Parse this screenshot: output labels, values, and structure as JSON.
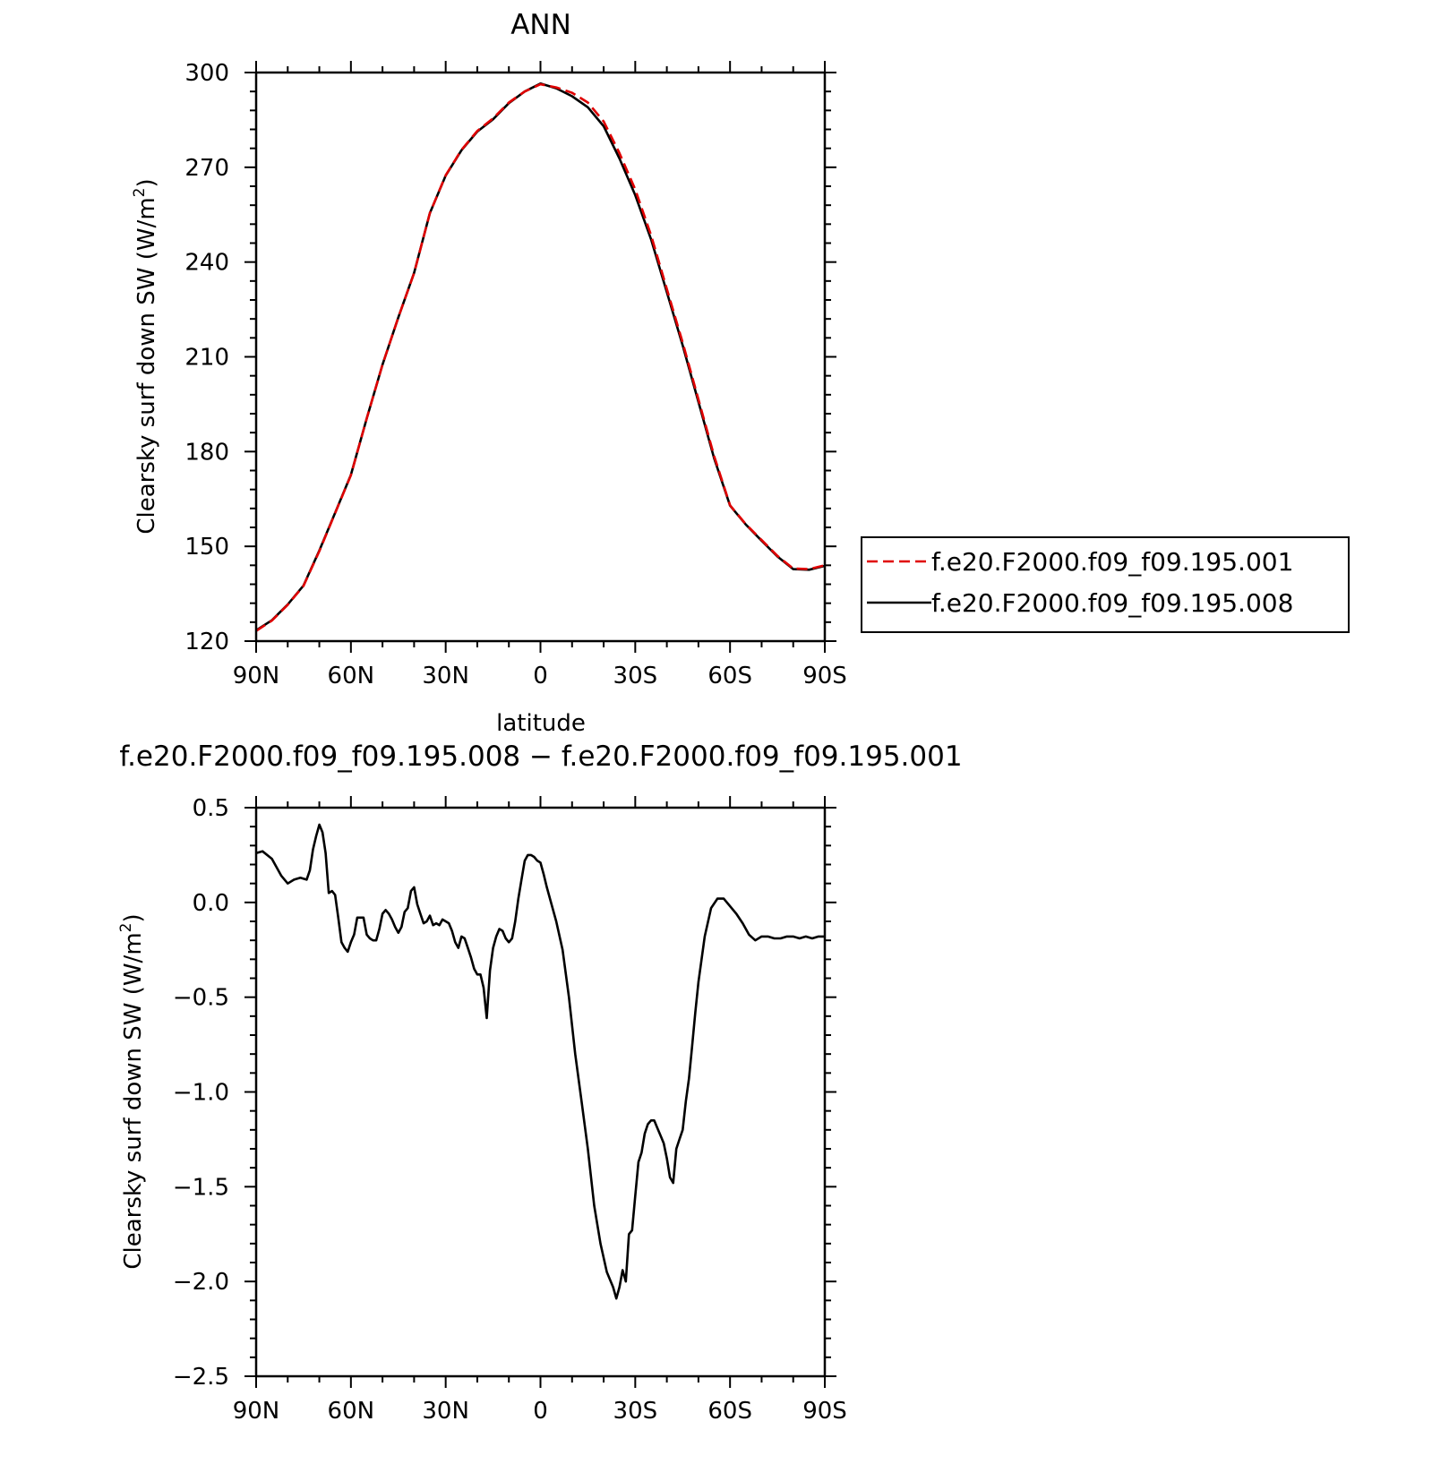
{
  "chart_data": [
    {
      "type": "line",
      "title": "ANN",
      "xlabel": "latitude",
      "ylabel": "Clearsky surf down SW (W/m",
      "ylabel_sup": "2",
      "ylabel_close": ")",
      "xlim": [
        90,
        -90
      ],
      "ylim": [
        120,
        300
      ],
      "x_ticks": [
        90,
        60,
        30,
        0,
        -30,
        -60,
        -90
      ],
      "x_tick_labels": [
        "90N",
        "60N",
        "30N",
        "0",
        "30S",
        "60S",
        "90S"
      ],
      "y_ticks": [
        120,
        150,
        180,
        210,
        240,
        270,
        300
      ],
      "y_tick_labels": [
        "120",
        "150",
        "180",
        "210",
        "240",
        "270",
        "300"
      ],
      "legend_position": "right",
      "series": [
        {
          "name": "f.e20.F2000.f09_f09.195.001",
          "color": "#e00000",
          "dash": "dashed",
          "x": [
            90,
            85,
            80,
            75,
            70,
            65,
            60,
            55,
            50,
            45,
            40,
            35,
            30,
            25,
            20,
            15,
            10,
            5,
            0,
            -5,
            -10,
            -15,
            -20,
            -25,
            -30,
            -35,
            -40,
            -45,
            -50,
            -55,
            -60,
            -65,
            -70,
            -75,
            -80,
            -85,
            -90
          ],
          "y": [
            123.2,
            126.5,
            131.5,
            137.5,
            148.5,
            160.5,
            172.5,
            190.5,
            207.5,
            222.5,
            236.5,
            255.5,
            267.5,
            275.5,
            281.5,
            285.5,
            290.5,
            294.0,
            296.3,
            295.3,
            293.6,
            290.5,
            284.5,
            274.5,
            263.0,
            248.5,
            231.5,
            214.5,
            196.5,
            178.5,
            163.0,
            157.0,
            152.0,
            147.0,
            143.0,
            142.8,
            144.0
          ]
        },
        {
          "name": "f.e20.F2000.f09_f09.195.008",
          "color": "#000000",
          "dash": "solid",
          "x": [
            90,
            85,
            80,
            75,
            70,
            65,
            60,
            55,
            50,
            45,
            40,
            35,
            30,
            25,
            20,
            15,
            10,
            5,
            0,
            -5,
            -10,
            -15,
            -20,
            -25,
            -30,
            -35,
            -40,
            -45,
            -50,
            -55,
            -60,
            -65,
            -70,
            -75,
            -80,
            -85,
            -90
          ],
          "y": [
            123.4,
            126.6,
            131.6,
            137.6,
            148.7,
            160.6,
            172.6,
            190.5,
            207.5,
            222.5,
            236.6,
            255.5,
            267.4,
            275.4,
            281.3,
            285.2,
            290.3,
            294.0,
            296.5,
            295.0,
            292.5,
            289.0,
            283.0,
            272.8,
            261.2,
            247.2,
            230.5,
            213.6,
            195.7,
            177.8,
            162.9,
            156.9,
            151.8,
            146.8,
            142.8,
            142.6,
            143.8
          ]
        }
      ]
    },
    {
      "type": "line",
      "title": "f.e20.F2000.f09_f09.195.008 − f.e20.F2000.f09_f09.195.001",
      "xlabel": "latitude",
      "ylabel": "Clearsky surf down SW (W/m",
      "ylabel_sup": "2",
      "ylabel_close": ")",
      "xlim": [
        90,
        -90
      ],
      "ylim": [
        -2.5,
        0.5
      ],
      "x_ticks": [
        90,
        60,
        30,
        0,
        -30,
        -60,
        -90
      ],
      "x_tick_labels": [
        "90N",
        "60N",
        "30N",
        "0",
        "30S",
        "60S",
        "90S"
      ],
      "y_ticks": [
        0.5,
        0,
        -0.5,
        -1,
        -1.5,
        -2,
        -2.5
      ],
      "y_tick_labels": [
        "0.5",
        "0.0",
        "−0.5",
        "−1.0",
        "−1.5",
        "−2.0",
        "−2.5"
      ],
      "series": [
        {
          "color": "#000000",
          "dash": "solid",
          "x": [
            90,
            88,
            85,
            82,
            80,
            78,
            76,
            74,
            73,
            72,
            71,
            70,
            69,
            68,
            67,
            66,
            65,
            64,
            63,
            62,
            61,
            60,
            59,
            58,
            57,
            56,
            55,
            54,
            53,
            52,
            51,
            50,
            49,
            48,
            47,
            46,
            45,
            44,
            43,
            42,
            41,
            40,
            39,
            38,
            37,
            36,
            35,
            34,
            33,
            32,
            31,
            30,
            29,
            28,
            27,
            26,
            25,
            24,
            23,
            22,
            21,
            20,
            19,
            18,
            17,
            16,
            15,
            14,
            13,
            12,
            11,
            10,
            9,
            8,
            7,
            6,
            5,
            4,
            3,
            2,
            1,
            0,
            -1,
            -2,
            -3,
            -5,
            -7,
            -9,
            -11,
            -13,
            -15,
            -17,
            -19,
            -21,
            -23,
            -24,
            -25,
            -26,
            -27,
            -28,
            -29,
            -30,
            -31,
            -32,
            -33,
            -34,
            -35,
            -36,
            -37,
            -38,
            -39,
            -40,
            -41,
            -42,
            -43,
            -44,
            -45,
            -46,
            -47,
            -48,
            -49,
            -50,
            -52,
            -54,
            -56,
            -58,
            -60,
            -62,
            -64,
            -66,
            -68,
            -70,
            -72,
            -74,
            -76,
            -78,
            -80,
            -82,
            -84,
            -86,
            -88,
            -90
          ],
          "y": [
            0.26,
            0.27,
            0.23,
            0.14,
            0.1,
            0.12,
            0.13,
            0.12,
            0.17,
            0.28,
            0.35,
            0.41,
            0.37,
            0.26,
            0.05,
            0.06,
            0.04,
            -0.08,
            -0.21,
            -0.24,
            -0.26,
            -0.21,
            -0.17,
            -0.08,
            -0.08,
            -0.08,
            -0.17,
            -0.19,
            -0.2,
            -0.2,
            -0.14,
            -0.06,
            -0.04,
            -0.06,
            -0.09,
            -0.13,
            -0.16,
            -0.13,
            -0.05,
            -0.03,
            0.06,
            0.08,
            -0.01,
            -0.06,
            -0.11,
            -0.1,
            -0.07,
            -0.12,
            -0.11,
            -0.12,
            -0.09,
            -0.1,
            -0.11,
            -0.15,
            -0.21,
            -0.24,
            -0.18,
            -0.19,
            -0.24,
            -0.29,
            -0.35,
            -0.38,
            -0.38,
            -0.45,
            -0.61,
            -0.36,
            -0.24,
            -0.18,
            -0.14,
            -0.15,
            -0.19,
            -0.21,
            -0.19,
            -0.1,
            0.02,
            0.12,
            0.22,
            0.25,
            0.25,
            0.24,
            0.22,
            0.21,
            0.15,
            0.08,
            0.02,
            -0.1,
            -0.25,
            -0.5,
            -0.8,
            -1.05,
            -1.3,
            -1.6,
            -1.8,
            -1.95,
            -2.03,
            -2.09,
            -2.03,
            -1.94,
            -2.0,
            -1.75,
            -1.73,
            -1.55,
            -1.37,
            -1.32,
            -1.22,
            -1.17,
            -1.15,
            -1.15,
            -1.19,
            -1.23,
            -1.27,
            -1.35,
            -1.45,
            -1.48,
            -1.3,
            -1.25,
            -1.2,
            -1.05,
            -0.93,
            -0.76,
            -0.58,
            -0.42,
            -0.18,
            -0.03,
            0.02,
            0.02,
            -0.02,
            -0.06,
            -0.11,
            -0.17,
            -0.2,
            -0.18,
            -0.18,
            -0.19,
            -0.19,
            -0.18,
            -0.18,
            -0.19,
            -0.18,
            -0.19,
            -0.18,
            -0.18
          ]
        }
      ]
    }
  ]
}
